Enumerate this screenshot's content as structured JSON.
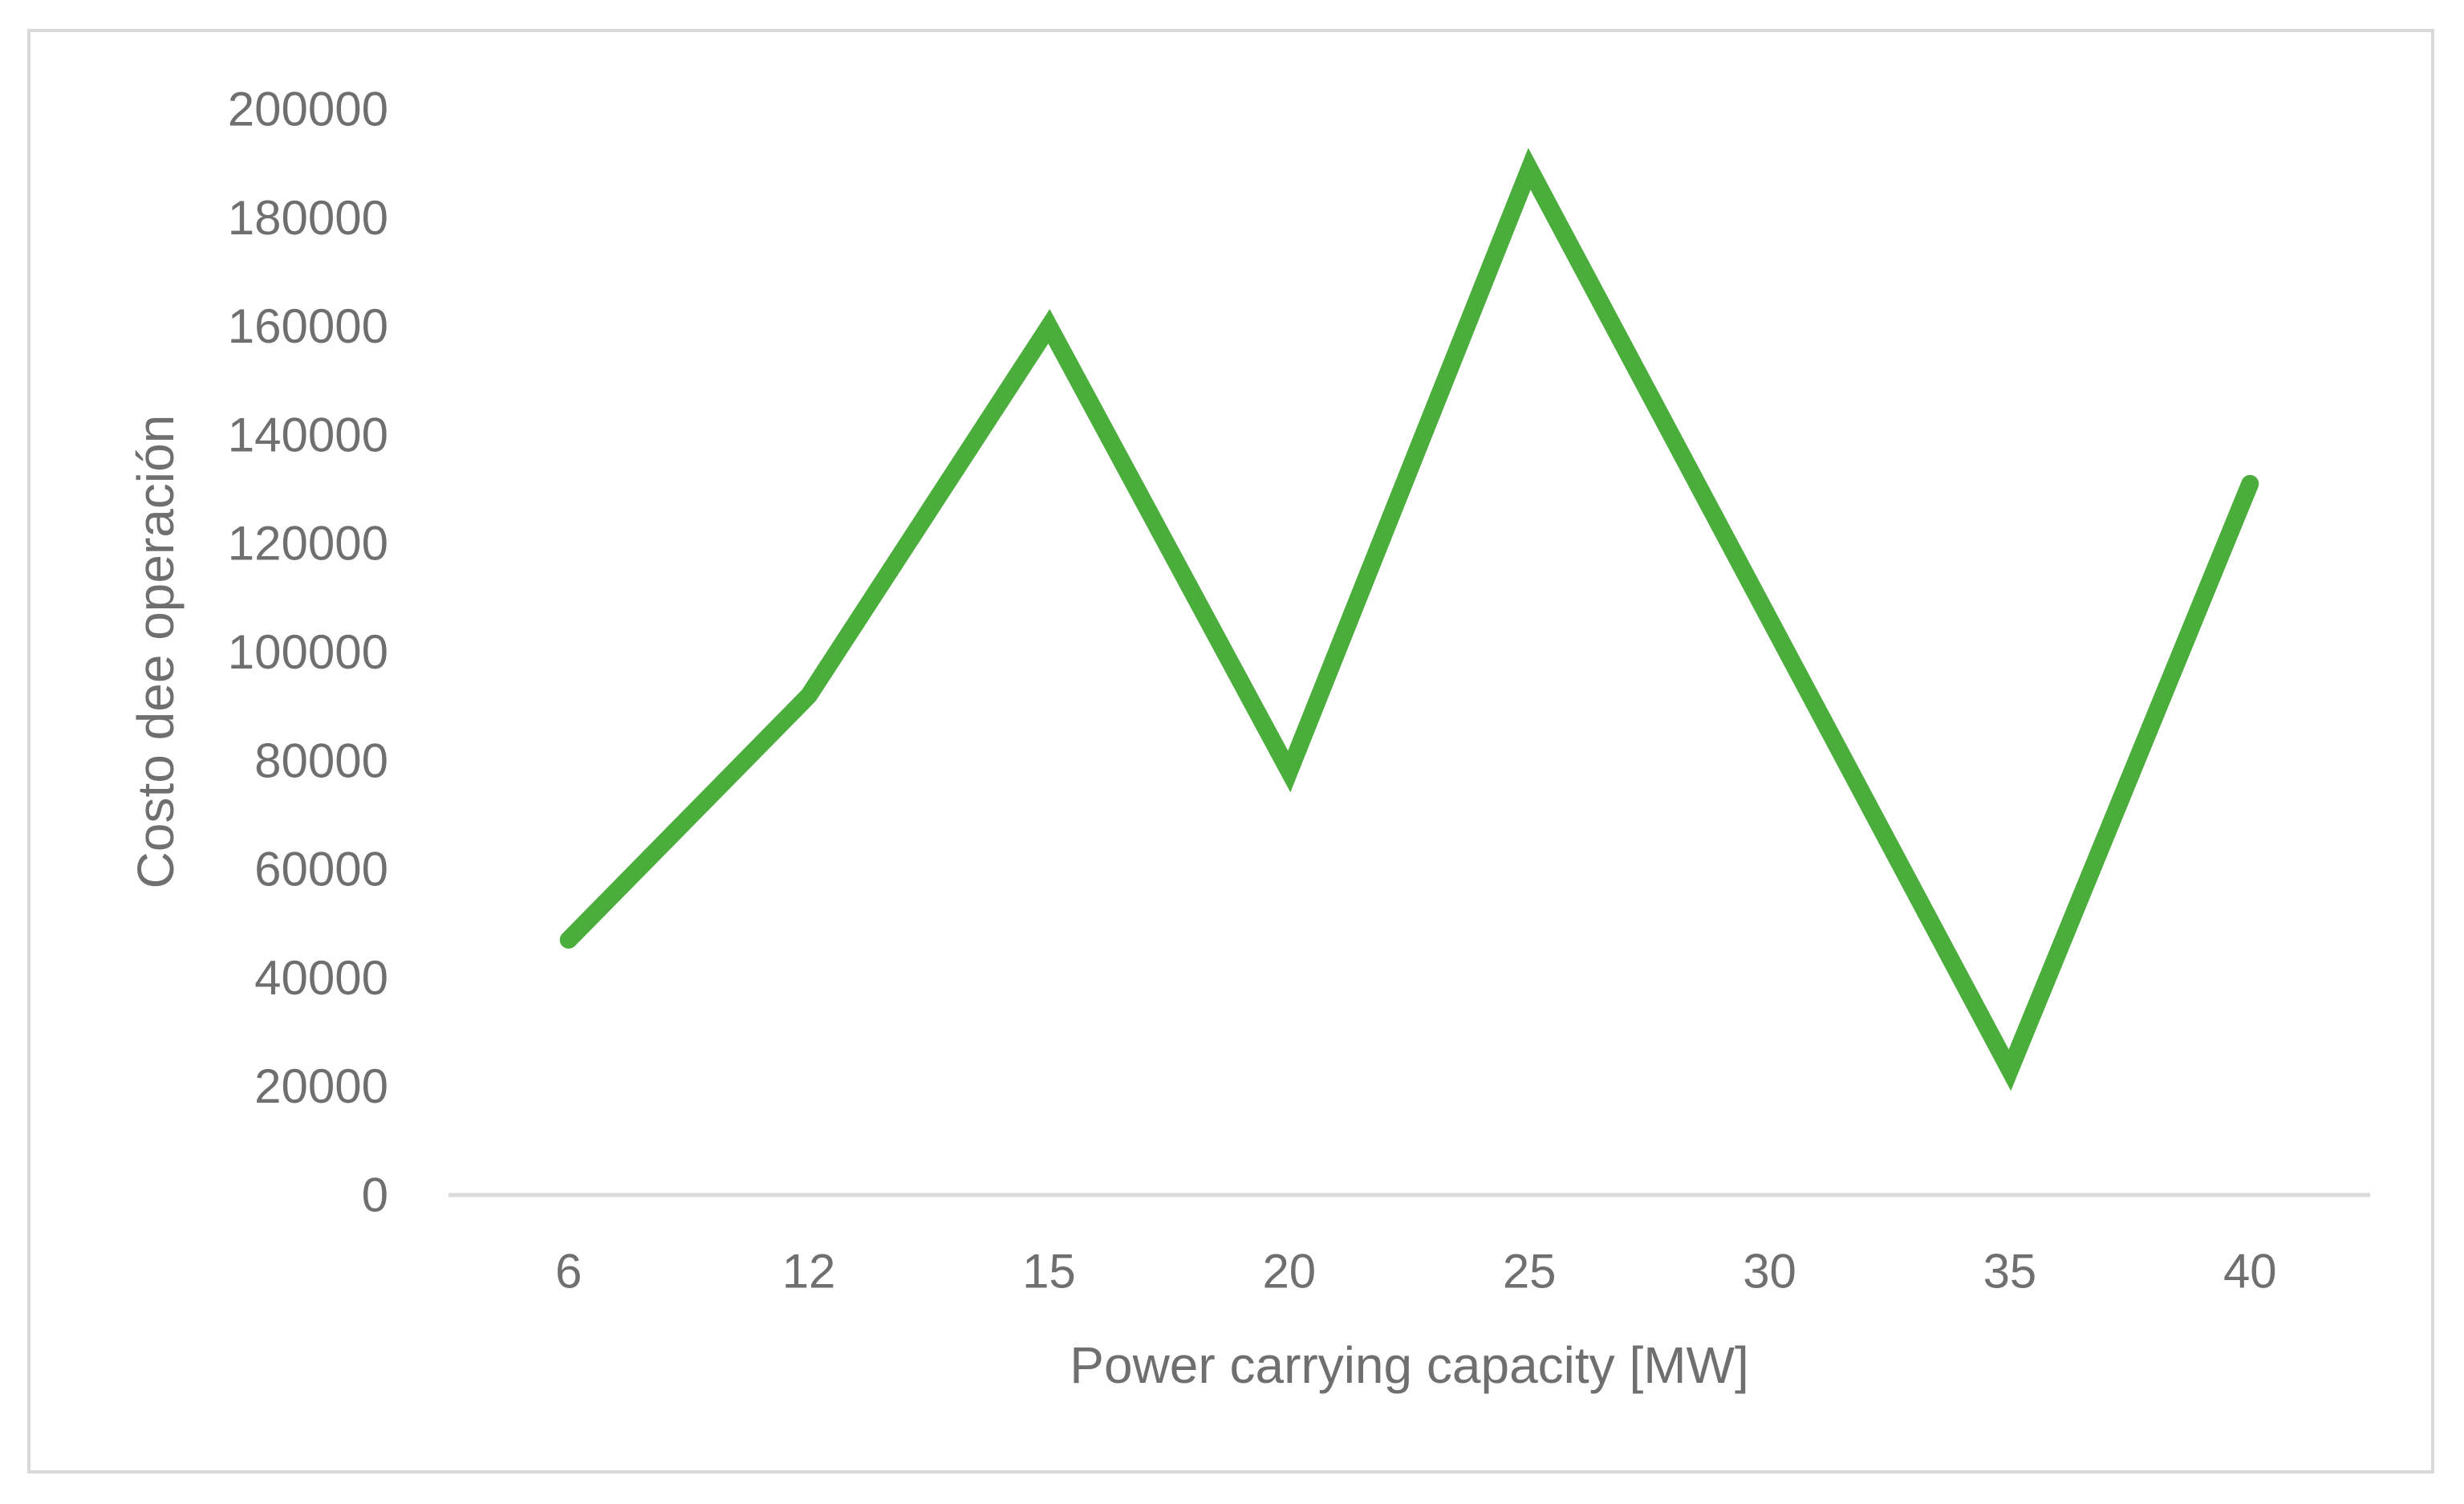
{
  "chart_data": {
    "type": "line",
    "xlabel": "Power carrying capacity [MW]",
    "ylabel": "Costo dee operación",
    "categories": [
      "6",
      "12",
      "15",
      "20",
      "25",
      "30",
      "35",
      "40"
    ],
    "series": [
      {
        "values": [
          47000,
          92000,
          160000,
          78000,
          189000,
          106000,
          23000,
          131000
        ]
      }
    ],
    "ylim": [
      0,
      200000
    ],
    "yticks": [
      "0",
      "20000",
      "40000",
      "60000",
      "80000",
      "100000",
      "120000",
      "140000",
      "160000",
      "180000",
      "200000"
    ],
    "grid": false,
    "legend": "none",
    "colors": {
      "line": "#4aad3c",
      "axis": "#d9d9d9",
      "text": "#6f6f6f",
      "border": "#d9d9d9"
    }
  }
}
